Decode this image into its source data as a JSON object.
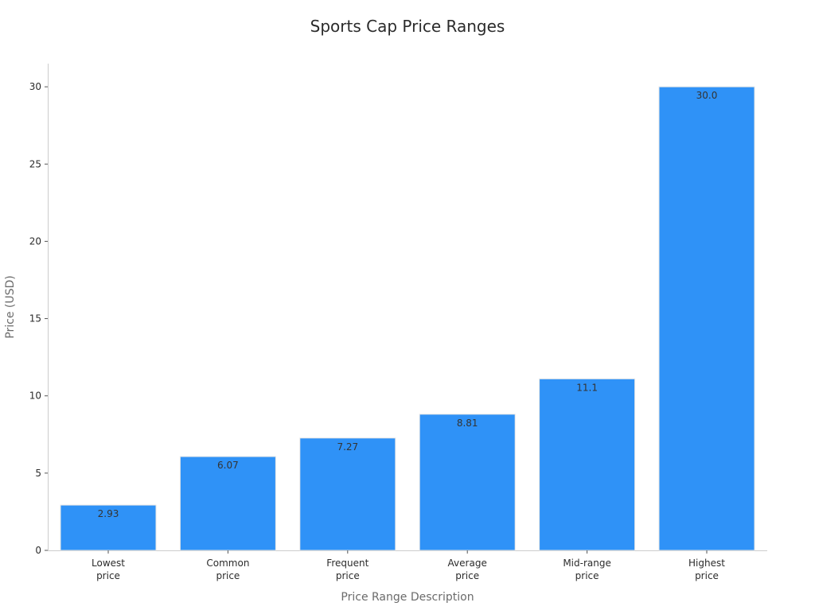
{
  "chart_data": {
    "type": "bar",
    "title": "Sports Cap Price Ranges",
    "xlabel": "Price Range Description",
    "ylabel": "Price (USD)",
    "categories": [
      [
        "Lowest",
        "price"
      ],
      [
        "Common",
        "price"
      ],
      [
        "Frequent",
        "price"
      ],
      [
        "Average",
        "price"
      ],
      [
        "Mid-range",
        "price"
      ],
      [
        "Highest",
        "price"
      ]
    ],
    "values": [
      2.93,
      6.07,
      7.27,
      8.81,
      11.1,
      30.0
    ],
    "value_labels": [
      "2.93",
      "6.07",
      "7.27",
      "8.81",
      "11.1",
      "30.0"
    ],
    "ylim": [
      0,
      31.5
    ],
    "yticks": [
      0,
      5,
      10,
      15,
      20,
      25,
      30
    ],
    "ytick_labels": [
      "0",
      "5",
      "10",
      "15",
      "20",
      "25",
      "30"
    ],
    "grid": false,
    "bar_color": "#2f92f7",
    "bar_edge_color": "#e6e6e6"
  }
}
